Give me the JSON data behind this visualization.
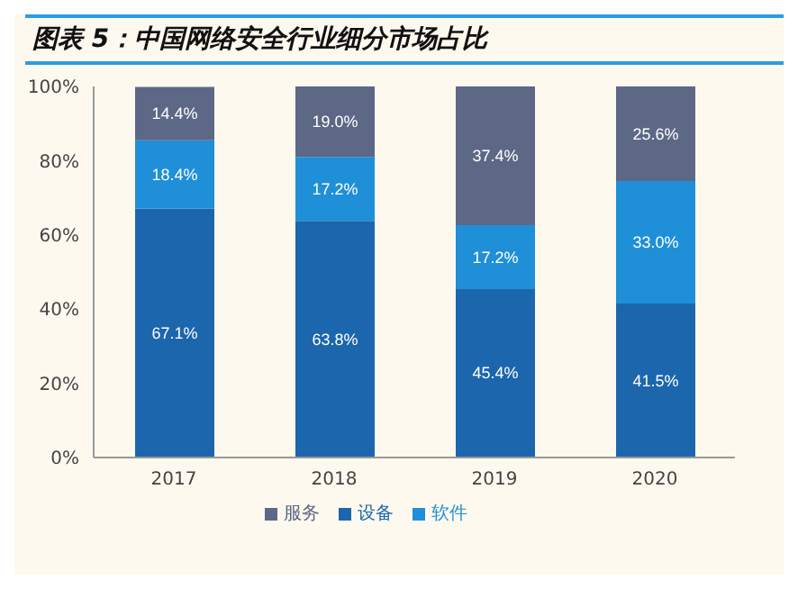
{
  "chart_data": {
    "type": "bar",
    "title": "图表 5：中国网络安全行业细分市场占比",
    "stacked": true,
    "categories": [
      "2017",
      "2018",
      "2019",
      "2020"
    ],
    "series": [
      {
        "name": "设备",
        "color": "#1b66ad",
        "values": [
          67.1,
          63.8,
          45.4,
          41.5
        ],
        "value_labels": [
          "67.1%",
          "63.8%",
          "45.4%",
          "41.5%"
        ]
      },
      {
        "name": "软件",
        "color": "#1f8fd8",
        "values": [
          18.4,
          17.2,
          17.2,
          33.0
        ],
        "value_labels": [
          "18.4%",
          "17.2%",
          "17.2%",
          "33.0%"
        ]
      },
      {
        "name": "服务",
        "color": "#5c6886",
        "values": [
          14.4,
          19.0,
          37.4,
          25.6
        ],
        "value_labels": [
          "14.4%",
          "19.0%",
          "37.4%",
          "25.6%"
        ]
      }
    ],
    "ylim": [
      0,
      100
    ],
    "yticks": [
      {
        "value": 0,
        "label": "0%"
      },
      {
        "value": 20,
        "label": "20%"
      },
      {
        "value": 40,
        "label": "40%"
      },
      {
        "value": 60,
        "label": "60%"
      },
      {
        "value": 80,
        "label": "80%"
      },
      {
        "value": 100,
        "label": "100%"
      }
    ],
    "grid": false,
    "legend": "bottom"
  }
}
